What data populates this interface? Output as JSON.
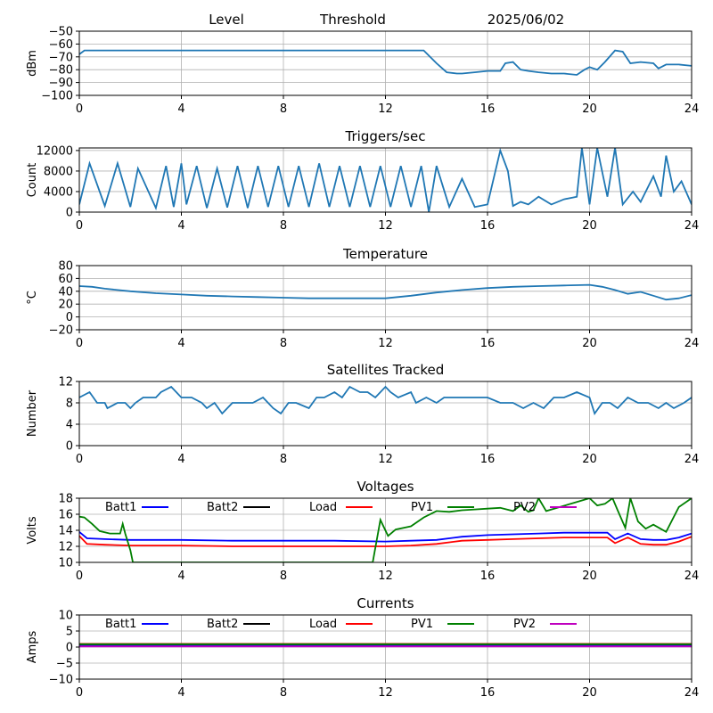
{
  "header": {
    "level": "Level",
    "threshold": "Threshold",
    "date": "2025/06/02"
  },
  "xticks": [
    "0",
    "4",
    "8",
    "12",
    "16",
    "20",
    "24"
  ],
  "chart_data": [
    {
      "type": "line",
      "title": "",
      "ylabel": "dBm",
      "ylim": [
        -100,
        -50
      ],
      "yticks": [
        -50,
        -60,
        -70,
        -80,
        -90,
        -100
      ],
      "xlim": [
        0,
        24
      ],
      "grid": true,
      "series": [
        {
          "color": "#1f77b4",
          "x": [
            0,
            0.2,
            2,
            4,
            6,
            7,
            8,
            10,
            12,
            13.5,
            14,
            14.4,
            14.8,
            15,
            15.5,
            16,
            16.5,
            16.7,
            17,
            17.3,
            17.6,
            18,
            18.5,
            19,
            19.5,
            19.8,
            20,
            20.3,
            20.6,
            21,
            21.3,
            21.6,
            22,
            22.5,
            22.7,
            23,
            23.5,
            24
          ],
          "values": [
            -68,
            -65,
            -65,
            -65,
            -65,
            -65,
            -65,
            -65,
            -65,
            -65,
            -75,
            -82,
            -83,
            -83,
            -82,
            -81,
            -81,
            -75,
            -74,
            -80,
            -81,
            -82,
            -83,
            -83,
            -84,
            -80,
            -78,
            -80,
            -74,
            -65,
            -66,
            -75,
            -74,
            -75,
            -79,
            -76,
            -76,
            -77
          ]
        }
      ]
    },
    {
      "type": "line",
      "title": "Triggers/sec",
      "ylabel": "Count",
      "ylim": [
        0,
        12500
      ],
      "yticks": [
        0,
        4000,
        8000,
        12000
      ],
      "xlim": [
        0,
        24
      ],
      "grid": true,
      "series": [
        {
          "color": "#1f77b4",
          "x": [
            0,
            0.4,
            1,
            1.5,
            2,
            2.3,
            3,
            3.4,
            3.7,
            4,
            4.2,
            4.6,
            5,
            5.4,
            5.8,
            6.2,
            6.6,
            7,
            7.4,
            7.8,
            8.2,
            8.6,
            9,
            9.4,
            9.8,
            10.2,
            10.6,
            11,
            11.4,
            11.8,
            12.2,
            12.6,
            13,
            13.4,
            13.7,
            14,
            14.5,
            15,
            15.5,
            16,
            16.5,
            16.8,
            17,
            17.3,
            17.6,
            18,
            18.5,
            19,
            19.5,
            19.7,
            20,
            20.3,
            20.7,
            21,
            21.3,
            21.7,
            22,
            22.5,
            22.8,
            23,
            23.3,
            23.6,
            24
          ],
          "values": [
            1500,
            9500,
            1200,
            9500,
            1000,
            8500,
            800,
            9000,
            1000,
            9500,
            1500,
            9000,
            800,
            8500,
            900,
            9000,
            800,
            9000,
            1000,
            9000,
            1000,
            9000,
            1000,
            9500,
            1000,
            9000,
            1000,
            9000,
            1000,
            9000,
            1000,
            9000,
            1000,
            9000,
            0,
            9000,
            1000,
            6500,
            1000,
            1500,
            12000,
            8000,
            1200,
            2000,
            1500,
            3000,
            1500,
            2500,
            3000,
            12500,
            1500,
            12500,
            3000,
            12500,
            1500,
            4000,
            2000,
            7000,
            3000,
            11000,
            4000,
            6000,
            1500
          ]
        }
      ]
    },
    {
      "type": "line",
      "title": "Temperature",
      "ylabel": "°C",
      "ylim": [
        -20,
        80
      ],
      "yticks": [
        80,
        60,
        40,
        20,
        0,
        -20
      ],
      "xlim": [
        0,
        24
      ],
      "grid": true,
      "series": [
        {
          "color": "#1f77b4",
          "x": [
            0,
            0.5,
            1,
            2,
            3,
            4,
            5,
            6,
            7,
            8,
            9,
            10,
            11,
            12,
            13,
            14,
            15,
            16,
            17,
            18,
            19,
            20,
            20.5,
            21,
            21.5,
            22,
            22.5,
            23,
            23.5,
            24
          ],
          "values": [
            48,
            47,
            44,
            40,
            37,
            35,
            33,
            32,
            31,
            30,
            29,
            29,
            29,
            29,
            33,
            38,
            42,
            45,
            47,
            48,
            49,
            50,
            47,
            42,
            36,
            39,
            33,
            27,
            29,
            34
          ]
        }
      ]
    },
    {
      "type": "line",
      "title": "Satellites Tracked",
      "ylabel": "Number",
      "ylim": [
        0,
        12
      ],
      "yticks": [
        0,
        4,
        8,
        12
      ],
      "xlim": [
        0,
        24
      ],
      "grid": true,
      "series": [
        {
          "color": "#1f77b4",
          "x": [
            0,
            0.4,
            0.7,
            1,
            1.1,
            1.5,
            1.8,
            2,
            2.2,
            2.5,
            3,
            3.2,
            3.6,
            4,
            4.4,
            4.8,
            5,
            5.3,
            5.6,
            6,
            6.4,
            6.8,
            7.2,
            7.6,
            7.9,
            8.2,
            8.5,
            9,
            9.3,
            9.6,
            10,
            10.3,
            10.6,
            11,
            11.3,
            11.6,
            12,
            12.2,
            12.5,
            13,
            13.2,
            13.6,
            14,
            14.3,
            14.6,
            15,
            15.5,
            16,
            16.5,
            17,
            17.4,
            17.8,
            18.2,
            18.6,
            19,
            19.5,
            20,
            20.2,
            20.5,
            20.8,
            21.1,
            21.5,
            21.9,
            22.3,
            22.7,
            23,
            23.3,
            23.7,
            24
          ],
          "values": [
            9,
            10,
            8,
            8,
            7,
            8,
            8,
            7,
            8,
            9,
            9,
            10,
            11,
            9,
            9,
            8,
            7,
            8,
            6,
            8,
            8,
            8,
            9,
            7,
            6,
            8,
            8,
            7,
            9,
            9,
            10,
            9,
            11,
            10,
            10,
            9,
            11,
            10,
            9,
            10,
            8,
            9,
            8,
            9,
            9,
            9,
            9,
            9,
            8,
            8,
            7,
            8,
            7,
            9,
            9,
            10,
            9,
            6,
            8,
            8,
            7,
            9,
            8,
            8,
            7,
            8,
            7,
            8,
            9
          ]
        }
      ]
    },
    {
      "type": "line",
      "title": "Voltages",
      "ylabel": "Volts",
      "ylim": [
        10,
        18
      ],
      "yticks": [
        10,
        12,
        14,
        16,
        18
      ],
      "xlim": [
        0,
        24
      ],
      "grid": true,
      "legend": "top",
      "series": [
        {
          "name": "Batt1",
          "color": "#0000ff",
          "x": [
            0,
            0.3,
            1,
            2,
            4,
            6,
            8,
            10,
            12,
            13,
            14,
            15,
            16,
            17,
            18,
            19,
            20,
            20.7,
            21,
            21.5,
            22,
            22.5,
            23,
            23.5,
            24
          ],
          "values": [
            13.8,
            13,
            12.9,
            12.8,
            12.8,
            12.7,
            12.7,
            12.7,
            12.6,
            12.7,
            12.8,
            13.2,
            13.4,
            13.5,
            13.6,
            13.7,
            13.7,
            13.7,
            12.9,
            13.6,
            12.9,
            12.8,
            12.8,
            13.1,
            13.6
          ]
        },
        {
          "name": "Batt2",
          "color": "#000000",
          "x": [],
          "values": []
        },
        {
          "name": "Load",
          "color": "#ff0000",
          "x": [
            0,
            0.3,
            1,
            2,
            4,
            6,
            8,
            10,
            12,
            13,
            14,
            15,
            16,
            17,
            18,
            19,
            20,
            20.7,
            21,
            21.5,
            22,
            22.5,
            23,
            23.5,
            24
          ],
          "values": [
            13.3,
            12.3,
            12.2,
            12.1,
            12.1,
            12.0,
            12.0,
            12.0,
            12.0,
            12.1,
            12.3,
            12.7,
            12.8,
            12.9,
            13.0,
            13.1,
            13.1,
            13.1,
            12.4,
            13.1,
            12.3,
            12.2,
            12.2,
            12.6,
            13.2
          ]
        },
        {
          "name": "PV1",
          "color": "#008000",
          "x": [
            0,
            0.2,
            0.5,
            0.8,
            1.2,
            1.6,
            1.7,
            1.8,
            2.0,
            2.1,
            11.5,
            11.8,
            12.1,
            12.4,
            13,
            13.5,
            14,
            14.5,
            15,
            15.5,
            16,
            16.5,
            17,
            17.3,
            17.6,
            17.8,
            18.0,
            18.3,
            20,
            20.3,
            20.6,
            20.9,
            21.1,
            21.4,
            21.6,
            21.9,
            22.2,
            22.5,
            23,
            23.5,
            24
          ],
          "values": [
            15.7,
            15.6,
            14.8,
            13.9,
            13.6,
            13.6,
            14.8,
            13.6,
            11.5,
            10,
            10,
            15.3,
            13.3,
            14.1,
            14.5,
            15.6,
            16.4,
            16.3,
            16.5,
            16.6,
            16.7,
            16.8,
            16.4,
            17.1,
            16.3,
            16.5,
            18.0,
            16.4,
            18,
            17.1,
            17.3,
            18,
            16.5,
            14.3,
            18,
            15.1,
            14.2,
            14.7,
            13.8,
            16.9,
            18
          ]
        },
        {
          "name": "PV2",
          "color": "#bf00bf",
          "x": [],
          "values": []
        }
      ]
    },
    {
      "type": "line",
      "title": "Currents",
      "ylabel": "Amps",
      "ylim": [
        -10,
        10
      ],
      "yticks": [
        10,
        5,
        0,
        -5,
        -10
      ],
      "xlim": [
        0,
        24
      ],
      "grid": true,
      "legend": "top",
      "series": [
        {
          "name": "Batt1",
          "color": "#0000ff",
          "x": [
            0,
            24
          ],
          "values": [
            0.5,
            0.5
          ]
        },
        {
          "name": "Batt2",
          "color": "#000000",
          "x": [
            0,
            24
          ],
          "values": [
            0.9,
            0.9
          ]
        },
        {
          "name": "Load",
          "color": "#ff0000",
          "x": [
            0,
            24
          ],
          "values": [
            1.0,
            1.0
          ]
        },
        {
          "name": "PV1",
          "color": "#008000",
          "x": [
            0,
            24
          ],
          "values": [
            0.9,
            0.9
          ]
        },
        {
          "name": "PV2",
          "color": "#bf00bf",
          "x": [
            0,
            24
          ],
          "values": [
            0.2,
            0.2
          ]
        }
      ]
    }
  ]
}
